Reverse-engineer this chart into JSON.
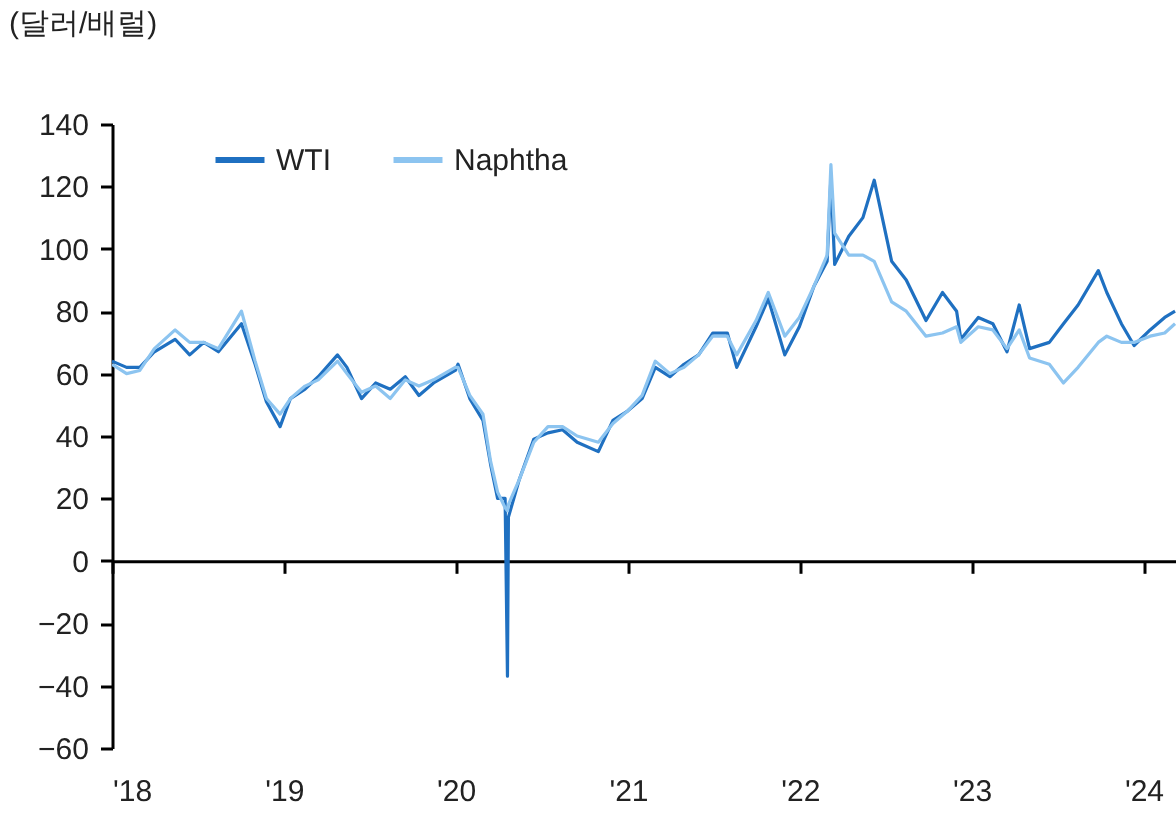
{
  "chart_data": {
    "type": "line",
    "ylabel": "(달러/배럴)",
    "x": [
      "2018-01-01",
      "2018-02-01",
      "2018-03-01",
      "2018-04-01",
      "2018-05-15",
      "2018-06-15",
      "2018-07-15",
      "2018-08-15",
      "2018-10-03",
      "2018-11-01",
      "2018-11-25",
      "2018-12-24",
      "2019-01-15",
      "2019-02-15",
      "2019-03-15",
      "2019-04-25",
      "2019-05-15",
      "2019-06-15",
      "2019-07-15",
      "2019-08-15",
      "2019-09-16",
      "2019-10-15",
      "2019-11-15",
      "2019-12-31",
      "2020-01-06",
      "2020-01-31",
      "2020-02-28",
      "2020-03-15",
      "2020-03-30",
      "2020-04-15",
      "2020-04-20",
      "2020-04-22",
      "2020-05-15",
      "2020-06-15",
      "2020-07-15",
      "2020-08-15",
      "2020-09-15",
      "2020-10-30",
      "2020-11-30",
      "2020-12-31",
      "2021-01-31",
      "2021-02-28",
      "2021-03-31",
      "2021-04-30",
      "2021-05-31",
      "2021-06-30",
      "2021-07-31",
      "2021-08-20",
      "2021-09-30",
      "2021-10-26",
      "2021-11-30",
      "2021-12-31",
      "2022-01-31",
      "2022-02-28",
      "2022-03-08",
      "2022-03-16",
      "2022-04-15",
      "2022-05-15",
      "2022-06-08",
      "2022-07-15",
      "2022-08-15",
      "2022-09-26",
      "2022-10-31",
      "2022-11-30",
      "2022-12-09",
      "2023-01-15",
      "2023-02-15",
      "2023-03-17",
      "2023-04-12",
      "2023-05-04",
      "2023-06-15",
      "2023-07-15",
      "2023-08-15",
      "2023-09-27",
      "2023-10-15",
      "2023-11-15",
      "2023-12-12",
      "2024-01-15",
      "2024-02-15",
      "2024-03-08"
    ],
    "series": [
      {
        "name": "WTI",
        "color": "#1f70c1",
        "values": [
          64,
          62,
          62,
          67,
          71,
          66,
          70,
          67,
          76,
          63,
          51,
          43,
          52,
          55,
          59,
          66,
          62,
          52,
          57,
          55,
          59,
          53,
          57,
          61,
          63,
          52,
          45,
          31,
          20,
          20,
          -37,
          14,
          26,
          39,
          41,
          42,
          38,
          35,
          45,
          48,
          52,
          62,
          59,
          63,
          66,
          73,
          73,
          62,
          75,
          84,
          66,
          75,
          88,
          96,
          123,
          95,
          104,
          110,
          122,
          96,
          90,
          77,
          86,
          80,
          71,
          78,
          76,
          67,
          82,
          68,
          70,
          76,
          82,
          93,
          86,
          76,
          69,
          74,
          78,
          80
        ]
      },
      {
        "name": "Naphtha",
        "color": "#8cc4f0",
        "values": [
          63,
          60,
          61,
          68,
          74,
          70,
          70,
          68,
          80,
          64,
          52,
          47,
          52,
          56,
          58,
          64,
          60,
          54,
          56,
          52,
          58,
          56,
          58,
          62,
          62,
          53,
          47,
          32,
          22,
          17,
          16,
          18,
          26,
          38,
          43,
          43,
          40,
          38,
          44,
          48,
          53,
          64,
          60,
          62,
          66,
          72,
          72,
          66,
          77,
          86,
          72,
          78,
          88,
          98,
          127,
          105,
          98,
          98,
          96,
          83,
          80,
          72,
          73,
          75,
          70,
          75,
          74,
          68,
          74,
          65,
          63,
          57,
          62,
          70,
          72,
          70,
          70,
          72,
          73,
          76
        ]
      }
    ],
    "xlim": [
      "2018-01-01",
      "2024-03-10"
    ],
    "xticks": [
      {
        "value": "2018-01-01",
        "label": "'18"
      },
      {
        "value": "2019-01-01",
        "label": "'19"
      },
      {
        "value": "2020-01-01",
        "label": "'20"
      },
      {
        "value": "2021-01-01",
        "label": "'21"
      },
      {
        "value": "2022-01-01",
        "label": "'22"
      },
      {
        "value": "2023-01-01",
        "label": "'23"
      },
      {
        "value": "2024-01-01",
        "label": "'24"
      }
    ],
    "ylim": [
      -60,
      140
    ],
    "yticks": [
      -60,
      -40,
      -20,
      0,
      20,
      40,
      60,
      80,
      100,
      120,
      140
    ],
    "legend": "top",
    "line_style": "solid"
  }
}
